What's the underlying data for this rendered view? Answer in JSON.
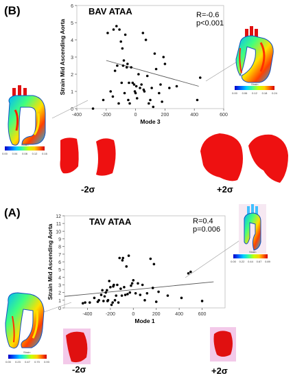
{
  "chart_data": [
    {
      "panel_label": "(B)",
      "type": "scatter",
      "title": "BAV ATAA",
      "xlabel": "Mode 3",
      "ylabel": "Strain Mid Ascending Aorta",
      "xlim": [
        -400,
        600
      ],
      "ylim": [
        0,
        6
      ],
      "xticks": [
        -400,
        -200,
        0,
        200,
        400,
        600
      ],
      "yticks": [
        0,
        1,
        2,
        3,
        4,
        5,
        6
      ],
      "stats": {
        "r": "R=-0.6",
        "p": "p<0.001"
      },
      "trendline": {
        "x": [
          -200,
          430
        ],
        "y": [
          2.8,
          1.3
        ]
      },
      "points": {
        "x": [
          -290,
          -220,
          -190,
          -170,
          -155,
          -150,
          -140,
          -130,
          -125,
          -115,
          -110,
          -100,
          -95,
          -90,
          -85,
          -80,
          -75,
          -70,
          -60,
          -55,
          -50,
          -45,
          -40,
          -30,
          -20,
          -10,
          -5,
          0,
          5,
          10,
          20,
          30,
          40,
          50,
          55,
          60,
          70,
          80,
          90,
          100,
          110,
          120,
          130,
          140,
          160,
          170,
          180,
          190,
          200,
          230,
          280,
          420,
          440
        ],
        "y": [
          0.0,
          0.5,
          4.4,
          1.0,
          0.7,
          4.6,
          2.2,
          4.8,
          2.5,
          0.3,
          4.6,
          3.9,
          1.5,
          3.5,
          2.5,
          2.8,
          0.9,
          4.3,
          2.4,
          2.6,
          0.5,
          1.5,
          0.3,
          2.4,
          1.5,
          1.4,
          1.0,
          0.9,
          1.3,
          0.6,
          2.0,
          1.2,
          1.4,
          4.4,
          1.1,
          1.0,
          4.0,
          1.9,
          0.3,
          0.5,
          1.2,
          0.1,
          3.2,
          2.3,
          0.9,
          1.4,
          0.4,
          3.0,
          2.6,
          1.2,
          1.3,
          0.5,
          1.8
        ]
      },
      "colorbar_strain": {
        "title": "Strain",
        "ticks": [
          "0.00",
          "0.04",
          "0.08",
          "0.12",
          "0.16"
        ]
      },
      "colorbar_strain_right": {
        "title": "Strain",
        "ticks": [
          "0.00",
          "0.06",
          "0.12",
          "0.18",
          "0.24"
        ]
      },
      "sigma_minus": "-2σ",
      "sigma_plus": "+2σ"
    },
    {
      "panel_label": "(A)",
      "type": "scatter",
      "title": "TAV ATAA",
      "xlabel": "Mode 1",
      "ylabel": "Strain Mid Ascending Aorta",
      "xlim": [
        -600,
        800
      ],
      "ylim": [
        0,
        12
      ],
      "xticks": [
        -400,
        -200,
        0,
        200,
        400,
        600
      ],
      "yticks": [
        0,
        1,
        2,
        3,
        4,
        5,
        6,
        7,
        8,
        9,
        10,
        11,
        12
      ],
      "stats": {
        "r": "R=0.4",
        "p": "p=0.006"
      },
      "trendline": {
        "x": [
          -600,
          700
        ],
        "y": [
          1.5,
          3.4
        ]
      },
      "points": {
        "x": [
          -440,
          -420,
          -380,
          -340,
          -310,
          -300,
          -280,
          -270,
          -260,
          -250,
          -240,
          -230,
          -225,
          -220,
          -210,
          -200,
          -190,
          -180,
          -175,
          -170,
          -160,
          -150,
          -140,
          -130,
          -120,
          -110,
          -100,
          -95,
          -90,
          -80,
          -70,
          -60,
          -50,
          -40,
          -30,
          -20,
          -10,
          0,
          20,
          40,
          60,
          80,
          100,
          120,
          150,
          170,
          180,
          200,
          220,
          300,
          420,
          480,
          500,
          600
        ],
        "y": [
          0.6,
          0.7,
          0.7,
          1.3,
          0.8,
          1.0,
          1.7,
          2.3,
          0.9,
          1.5,
          2.0,
          2.3,
          0.9,
          1.0,
          3.5,
          2.7,
          0.4,
          0.7,
          2.8,
          3.0,
          1.0,
          1.6,
          3.0,
          0.7,
          6.5,
          2.5,
          1.6,
          6.2,
          6.5,
          2.7,
          1.7,
          5.4,
          1.8,
          6.8,
          2.0,
          2.9,
          3.2,
          3.6,
          1.9,
          3.2,
          1.7,
          3.0,
          1.0,
          1.9,
          6.4,
          2.6,
          5.7,
          0.8,
          2.1,
          1.6,
          1.3,
          4.5,
          4.7,
          0.9
        ]
      },
      "colorbar_strain": {
        "title": "Strain",
        "ticks": [
          "0.00",
          "0.23",
          "0.47",
          "0.70",
          "0.93"
        ]
      },
      "colorbar_strain_right": {
        "title": "Strain",
        "ticks": [
          "0.00",
          "0.22",
          "0.44",
          "0.67",
          "0.89"
        ]
      },
      "sigma_minus": "-2σ",
      "sigma_plus": "+2σ"
    }
  ],
  "colors": {
    "point": "#000000",
    "trend": "#555555",
    "shape_red": "#ee1111",
    "shape_pink": "#e98fd0",
    "jet": [
      "#0000c8",
      "#0060ff",
      "#00d0ff",
      "#40ff90",
      "#c8ff00",
      "#ffd000",
      "#ff6000",
      "#d00000"
    ]
  }
}
